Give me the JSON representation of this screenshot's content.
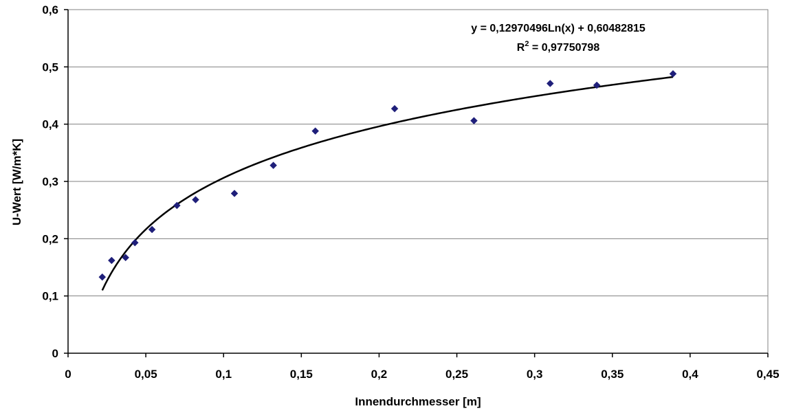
{
  "chart_data": {
    "type": "scatter",
    "title": "",
    "xlabel": "Innendurchmesser [m]",
    "ylabel": "U-Wert [W/m*K]",
    "xlim": [
      0,
      0.45
    ],
    "ylim": [
      0,
      0.6
    ],
    "x_ticks": [
      0,
      0.05,
      0.1,
      0.15,
      0.2,
      0.25,
      0.3,
      0.35,
      0.4,
      0.45
    ],
    "x_tick_labels": [
      "0",
      "0,05",
      "0,1",
      "0,15",
      "0,2",
      "0,25",
      "0,3",
      "0,35",
      "0,4",
      "0,45"
    ],
    "y_ticks": [
      0,
      0.1,
      0.2,
      0.3,
      0.4,
      0.5,
      0.6
    ],
    "y_tick_labels": [
      "0",
      "0,1",
      "0,2",
      "0,3",
      "0,4",
      "0,5",
      "0,6"
    ],
    "grid": "horizontal",
    "series": [
      {
        "marker": "diamond",
        "color": "#1F1F7A",
        "points": [
          [
            0.022,
            0.133
          ],
          [
            0.028,
            0.162
          ],
          [
            0.037,
            0.167
          ],
          [
            0.043,
            0.193
          ],
          [
            0.054,
            0.216
          ],
          [
            0.07,
            0.258
          ],
          [
            0.082,
            0.268
          ],
          [
            0.107,
            0.279
          ],
          [
            0.132,
            0.328
          ],
          [
            0.159,
            0.388
          ],
          [
            0.21,
            0.427
          ],
          [
            0.261,
            0.406
          ],
          [
            0.31,
            0.471
          ],
          [
            0.34,
            0.468
          ],
          [
            0.389,
            0.488
          ]
        ]
      }
    ],
    "trendline": {
      "type": "logarithmic",
      "a": 0.12970496,
      "b": 0.60482815,
      "x_range": [
        0.022,
        0.389
      ],
      "color": "#000000",
      "equation_label": "y = 0,12970496Ln(x) + 0,60482815",
      "r2_prefix": "R",
      "r2_sup": "2",
      "r2_suffix": " = 0,97750798"
    }
  }
}
